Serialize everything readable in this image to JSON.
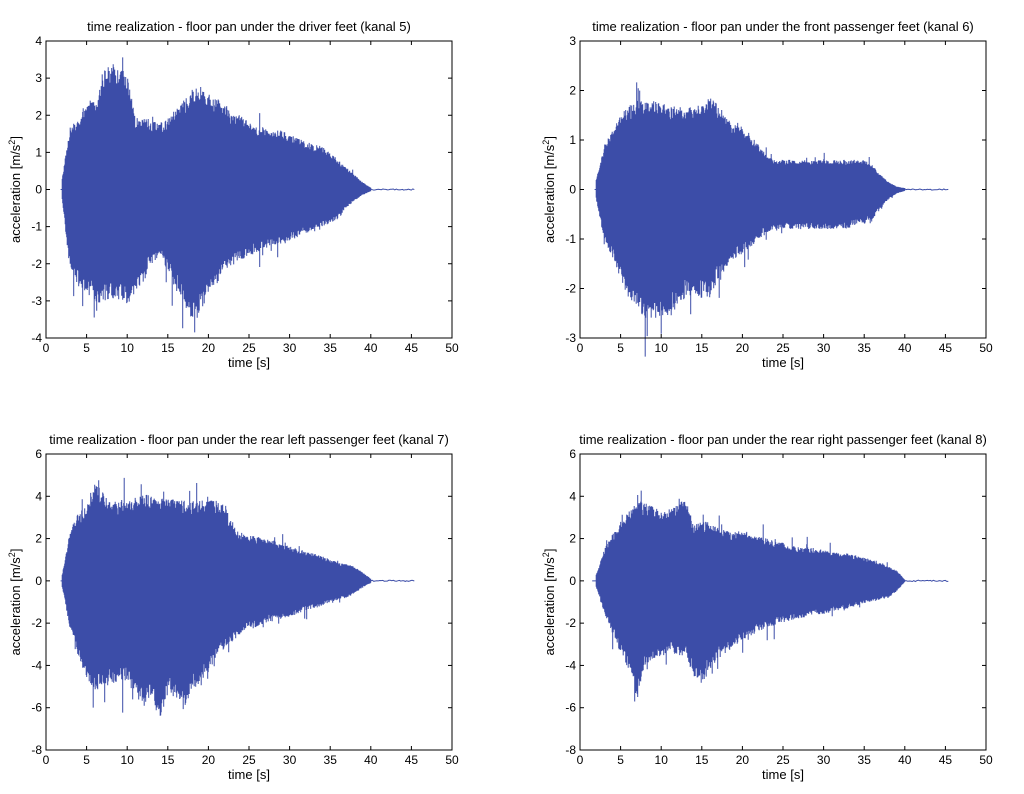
{
  "colors": {
    "signal": "#3c4da8",
    "axes": "#000000",
    "background": "#ffffff"
  },
  "chart_data": [
    {
      "type": "line",
      "title": "time realization - floor pan under the driver feet (kanal 5)",
      "xlabel": "time [s]",
      "ylabel_main": "acceleration [m/s",
      "ylabel_sup": "2",
      "ylabel_tail": "]",
      "xlim": [
        0,
        50
      ],
      "ylim": [
        -4,
        4
      ],
      "xticks": [
        0,
        5,
        10,
        15,
        20,
        25,
        30,
        35,
        40,
        45,
        50
      ],
      "yticks": [
        -4,
        -3,
        -2,
        -1,
        0,
        1,
        2,
        3,
        4
      ],
      "grid": false,
      "signal_start": 1.8,
      "signal_end": 45.5,
      "envelope": {
        "t": [
          2.0,
          2.6,
          3.0,
          4.0,
          5.0,
          6.0,
          7.0,
          8.0,
          9.0,
          10.0,
          11.0,
          12.0,
          13.0,
          14.0,
          15.0,
          16.0,
          17.0,
          18.0,
          19.0,
          20.0,
          21.0,
          22.0,
          23.0,
          24.0,
          25.0,
          26.0,
          27.0,
          28.0,
          29.0,
          30.0,
          31.0,
          32.0,
          33.0,
          34.0,
          35.0,
          36.0,
          37.0,
          38.0,
          39.0,
          40.0
        ],
        "upper": [
          0.3,
          1.2,
          1.6,
          1.9,
          2.3,
          2.4,
          3.2,
          3.4,
          3.3,
          3.1,
          2.0,
          1.9,
          1.9,
          1.8,
          1.9,
          2.3,
          2.4,
          2.7,
          2.8,
          2.6,
          2.5,
          2.3,
          2.1,
          2.0,
          1.8,
          1.7,
          1.7,
          1.6,
          1.6,
          1.5,
          1.4,
          1.3,
          1.2,
          1.2,
          1.0,
          0.8,
          0.6,
          0.4,
          0.2,
          0.05
        ],
        "lower": [
          -0.3,
          -1.5,
          -2.2,
          -2.6,
          -2.8,
          -3.0,
          -3.1,
          -2.9,
          -3.0,
          -3.1,
          -2.8,
          -2.5,
          -2.0,
          -1.8,
          -2.2,
          -2.7,
          -3.1,
          -3.5,
          -3.3,
          -2.8,
          -2.5,
          -2.2,
          -2.0,
          -1.9,
          -1.8,
          -1.7,
          -1.6,
          -1.5,
          -1.5,
          -1.4,
          -1.3,
          -1.2,
          -1.1,
          -1.0,
          -0.9,
          -0.8,
          -0.5,
          -0.3,
          -0.15,
          -0.05
        ]
      },
      "peak_max": 3.6,
      "peak_min": -3.9
    },
    {
      "type": "line",
      "title": "time realization - floor pan under the front passenger feet (kanal 6)",
      "xlabel": "time [s]",
      "ylabel_main": "acceleration [m/s",
      "ylabel_sup": "2",
      "ylabel_tail": "]",
      "xlim": [
        0,
        50
      ],
      "ylim": [
        -3,
        3
      ],
      "xticks": [
        0,
        5,
        10,
        15,
        20,
        25,
        30,
        35,
        40,
        45,
        50
      ],
      "yticks": [
        -3,
        -2,
        -1,
        0,
        1,
        2,
        3
      ],
      "grid": false,
      "signal_start": 1.8,
      "signal_end": 45.5,
      "envelope": {
        "t": [
          2.0,
          2.6,
          3.0,
          4.0,
          5.0,
          6.0,
          7.0,
          8.0,
          9.0,
          10.0,
          11.0,
          12.0,
          13.0,
          14.0,
          15.0,
          16.0,
          17.0,
          18.0,
          19.0,
          20.0,
          21.0,
          22.0,
          23.0,
          24.0,
          25.0,
          26.0,
          27.0,
          28.0,
          29.0,
          30.0,
          31.0,
          32.0,
          33.0,
          34.0,
          35.0,
          36.0,
          37.0,
          38.0,
          39.0,
          40.0
        ],
        "upper": [
          0.2,
          0.6,
          0.9,
          1.2,
          1.5,
          1.7,
          1.8,
          1.8,
          1.8,
          1.8,
          1.7,
          1.7,
          1.7,
          1.7,
          1.7,
          1.9,
          1.7,
          1.5,
          1.3,
          1.3,
          1.1,
          0.9,
          0.7,
          0.6,
          0.6,
          0.6,
          0.6,
          0.6,
          0.6,
          0.6,
          0.6,
          0.6,
          0.6,
          0.6,
          0.6,
          0.5,
          0.3,
          0.15,
          0.06,
          0.03
        ],
        "lower": [
          -0.2,
          -0.7,
          -1.0,
          -1.4,
          -1.8,
          -2.2,
          -2.4,
          -2.6,
          -2.6,
          -2.6,
          -2.6,
          -2.4,
          -2.2,
          -2.1,
          -2.2,
          -2.2,
          -1.8,
          -1.6,
          -1.4,
          -1.3,
          -1.2,
          -1.0,
          -0.9,
          -0.8,
          -0.8,
          -0.8,
          -0.8,
          -0.8,
          -0.8,
          -0.8,
          -0.8,
          -0.8,
          -0.8,
          -0.7,
          -0.7,
          -0.6,
          -0.4,
          -0.2,
          -0.08,
          -0.03
        ]
      },
      "peak_max": 2.3,
      "peak_min": -2.9
    },
    {
      "type": "line",
      "title": "time realization - floor pan under the rear left passenger feet (kanal 7)",
      "xlabel": "time [s]",
      "ylabel_main": "acceleration [m/s",
      "ylabel_sup": "2",
      "ylabel_tail": "]",
      "xlim": [
        0,
        50
      ],
      "ylim": [
        -8,
        6
      ],
      "xticks": [
        0,
        5,
        10,
        15,
        20,
        25,
        30,
        35,
        40,
        45,
        50
      ],
      "yticks": [
        -8,
        -6,
        -4,
        -2,
        0,
        2,
        4,
        6
      ],
      "grid": false,
      "signal_start": 1.8,
      "signal_end": 45.5,
      "envelope": {
        "t": [
          2.0,
          2.6,
          3.0,
          4.0,
          5.0,
          6.0,
          7.0,
          8.0,
          9.0,
          10.0,
          11.0,
          12.0,
          13.0,
          14.0,
          15.0,
          16.0,
          17.0,
          18.0,
          19.0,
          20.0,
          21.0,
          22.0,
          23.0,
          24.0,
          25.0,
          26.0,
          27.0,
          28.0,
          29.0,
          30.0,
          31.0,
          32.0,
          33.0,
          34.0,
          35.0,
          36.0,
          37.0,
          38.0,
          39.0,
          40.0
        ],
        "upper": [
          0.3,
          1.5,
          2.5,
          3.2,
          3.6,
          4.8,
          4.2,
          3.7,
          3.8,
          3.9,
          4.0,
          4.2,
          4.0,
          3.9,
          3.9,
          3.9,
          3.8,
          3.8,
          3.8,
          3.8,
          3.8,
          3.6,
          2.6,
          2.3,
          2.2,
          2.1,
          2.0,
          1.9,
          1.8,
          1.7,
          1.5,
          1.4,
          1.3,
          1.2,
          1.0,
          0.9,
          0.8,
          0.7,
          0.4,
          0.1
        ],
        "lower": [
          -0.3,
          -1.5,
          -2.5,
          -3.6,
          -4.6,
          -5.2,
          -5.0,
          -4.9,
          -4.8,
          -4.7,
          -5.5,
          -6.0,
          -5.5,
          -6.6,
          -5.5,
          -5.5,
          -6.2,
          -5.2,
          -4.8,
          -4.4,
          -3.6,
          -3.2,
          -2.9,
          -2.5,
          -2.3,
          -2.2,
          -2.0,
          -1.9,
          -1.8,
          -1.7,
          -1.6,
          -1.4,
          -1.3,
          -1.2,
          -1.0,
          -0.9,
          -0.8,
          -0.6,
          -0.3,
          -0.1
        ]
      },
      "peak_max": 5.5,
      "peak_min": -7.5
    },
    {
      "type": "line",
      "title": "time realization - floor pan under the rear right passenger feet (kanal 8)",
      "xlabel": "time [s]",
      "ylabel_main": "acceleration [m/s",
      "ylabel_sup": "2",
      "ylabel_tail": "]",
      "xlim": [
        0,
        50
      ],
      "ylim": [
        -8,
        6
      ],
      "xticks": [
        0,
        5,
        10,
        15,
        20,
        25,
        30,
        35,
        40,
        45,
        50
      ],
      "yticks": [
        -8,
        -6,
        -4,
        -2,
        0,
        2,
        4,
        6
      ],
      "grid": false,
      "signal_start": 1.5,
      "signal_end": 45.5,
      "envelope": {
        "t": [
          2.0,
          2.6,
          3.0,
          4.0,
          5.0,
          6.0,
          7.0,
          8.0,
          9.0,
          10.0,
          11.0,
          12.0,
          13.0,
          14.0,
          15.0,
          16.0,
          17.0,
          18.0,
          19.0,
          20.0,
          21.0,
          22.0,
          23.0,
          24.0,
          25.0,
          26.0,
          27.0,
          28.0,
          29.0,
          30.0,
          31.0,
          32.0,
          33.0,
          34.0,
          35.0,
          36.0,
          37.0,
          38.0,
          39.0,
          40.0
        ],
        "upper": [
          0.3,
          1.0,
          1.5,
          2.2,
          2.8,
          3.3,
          3.8,
          3.7,
          3.6,
          3.4,
          3.4,
          3.6,
          3.9,
          2.7,
          2.8,
          2.8,
          2.5,
          2.4,
          2.3,
          2.4,
          2.3,
          2.1,
          2.0,
          1.9,
          1.8,
          1.7,
          1.6,
          1.6,
          1.5,
          1.5,
          1.4,
          1.3,
          1.3,
          1.2,
          1.1,
          1.0,
          0.9,
          0.7,
          0.5,
          0.05
        ],
        "lower": [
          -0.3,
          -1.0,
          -1.5,
          -2.5,
          -3.4,
          -4.2,
          -5.5,
          -4.0,
          -3.8,
          -3.6,
          -3.4,
          -3.5,
          -3.6,
          -4.5,
          -5.0,
          -4.2,
          -3.8,
          -3.4,
          -3.1,
          -2.8,
          -2.6,
          -2.4,
          -2.2,
          -2.1,
          -2.0,
          -1.9,
          -1.8,
          -1.7,
          -1.6,
          -1.6,
          -1.5,
          -1.4,
          -1.3,
          -1.2,
          -1.1,
          -1.0,
          -0.9,
          -0.8,
          -0.5,
          -0.05
        ]
      },
      "peak_max": 4.9,
      "peak_min": -6.2
    }
  ]
}
